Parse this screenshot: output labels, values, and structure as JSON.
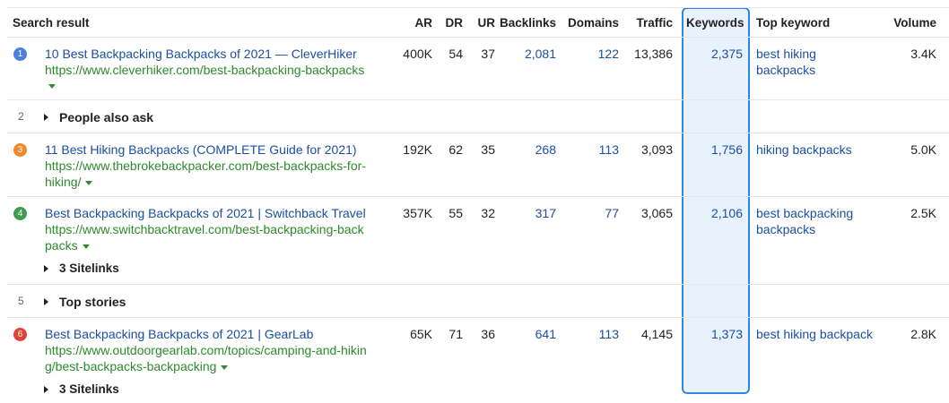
{
  "headers": {
    "search_result": "Search result",
    "ar": "AR",
    "dr": "DR",
    "ur": "UR",
    "backlinks": "Backlinks",
    "domains": "Domains",
    "traffic": "Traffic",
    "keywords": "Keywords",
    "top_keyword": "Top keyword",
    "volume": "Volume"
  },
  "results": [
    {
      "position": "1",
      "position_color": "#4a7fe0",
      "title": "10 Best Backpacking Backpacks of 2021 — CleverHiker",
      "url_lines": [
        "https://www.cleverhiker.com/best-backpacking-backpacks"
      ],
      "ar": "400K",
      "dr": "54",
      "ur": "37",
      "backlinks": "2,081",
      "domains": "122",
      "traffic": "13,386",
      "keywords": "2,375",
      "top_keyword_lines": [
        "best hiking",
        "backpacks"
      ],
      "volume": "3.4K"
    },
    {
      "position": "2",
      "serp_feature": "People also ask"
    },
    {
      "position": "3",
      "position_color": "#ef8a2b",
      "title": "11 Best Hiking Backpacks (COMPLETE Guide for 2021)",
      "url_lines": [
        "https://www.thebrokebackpacker.com/best-backpacks-for-",
        "hiking/"
      ],
      "ar": "192K",
      "dr": "62",
      "ur": "35",
      "backlinks": "268",
      "domains": "113",
      "traffic": "3,093",
      "keywords": "1,756",
      "top_keyword_lines": [
        "hiking backpacks"
      ],
      "volume": "5.0K"
    },
    {
      "position": "4",
      "position_color": "#3f9d4f",
      "title": "Best Backpacking Backpacks of 2021 | Switchback Travel",
      "url_lines": [
        "https://www.switchbacktravel.com/best-backpacking-back",
        "packs"
      ],
      "ar": "357K",
      "dr": "55",
      "ur": "32",
      "backlinks": "317",
      "domains": "77",
      "traffic": "3,065",
      "keywords": "2,106",
      "top_keyword_lines": [
        "best backpacking",
        "backpacks"
      ],
      "volume": "2.5K",
      "sitelinks": "3 Sitelinks"
    },
    {
      "position": "5",
      "serp_feature": "Top stories"
    },
    {
      "position": "6",
      "position_color": "#e04336",
      "title": "Best Backpacking Backpacks of 2021 | GearLab",
      "url_lines": [
        "https://www.outdoorgearlab.com/topics/camping-and-hikin",
        "g/best-backpacks-backpacking"
      ],
      "ar": "65K",
      "dr": "71",
      "ur": "36",
      "backlinks": "641",
      "domains": "113",
      "traffic": "4,145",
      "keywords": "1,373",
      "top_keyword_lines": [
        "best hiking backpack"
      ],
      "volume": "2.8K",
      "sitelinks": "3 Sitelinks"
    }
  ]
}
